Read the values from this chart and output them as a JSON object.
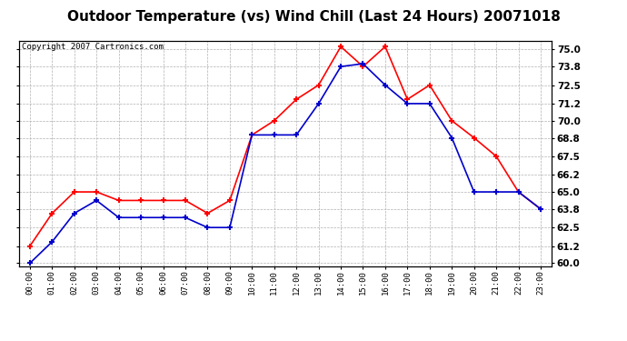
{
  "title": "Outdoor Temperature (vs) Wind Chill (Last 24 Hours) 20071018",
  "copyright_text": "Copyright 2007 Cartronics.com",
  "hours": [
    "00:00",
    "01:00",
    "02:00",
    "03:00",
    "04:00",
    "05:00",
    "06:00",
    "07:00",
    "08:00",
    "09:00",
    "10:00",
    "11:00",
    "12:00",
    "13:00",
    "14:00",
    "15:00",
    "16:00",
    "17:00",
    "18:00",
    "19:00",
    "20:00",
    "21:00",
    "22:00",
    "23:00"
  ],
  "red_data": [
    61.2,
    63.5,
    65.0,
    65.0,
    64.4,
    64.4,
    64.4,
    64.4,
    63.5,
    64.4,
    69.0,
    70.0,
    71.5,
    72.5,
    75.2,
    73.8,
    75.2,
    71.5,
    72.5,
    70.0,
    68.8,
    67.5,
    65.0,
    63.8
  ],
  "blue_data": [
    60.0,
    61.5,
    63.5,
    64.4,
    63.2,
    63.2,
    63.2,
    63.2,
    62.5,
    62.5,
    69.0,
    69.0,
    69.0,
    71.2,
    73.8,
    74.0,
    72.5,
    71.2,
    71.2,
    68.8,
    65.0,
    65.0,
    65.0,
    63.8
  ],
  "ylim_min": 59.8,
  "ylim_max": 75.6,
  "yticks": [
    60.0,
    61.2,
    62.5,
    63.8,
    65.0,
    66.2,
    67.5,
    68.8,
    70.0,
    71.2,
    72.5,
    73.8,
    75.0
  ],
  "red_color": "#ff0000",
  "blue_color": "#0000cc",
  "background_color": "#ffffff",
  "grid_color": "#b0b0b0",
  "title_fontsize": 11,
  "copyright_fontsize": 6.5
}
